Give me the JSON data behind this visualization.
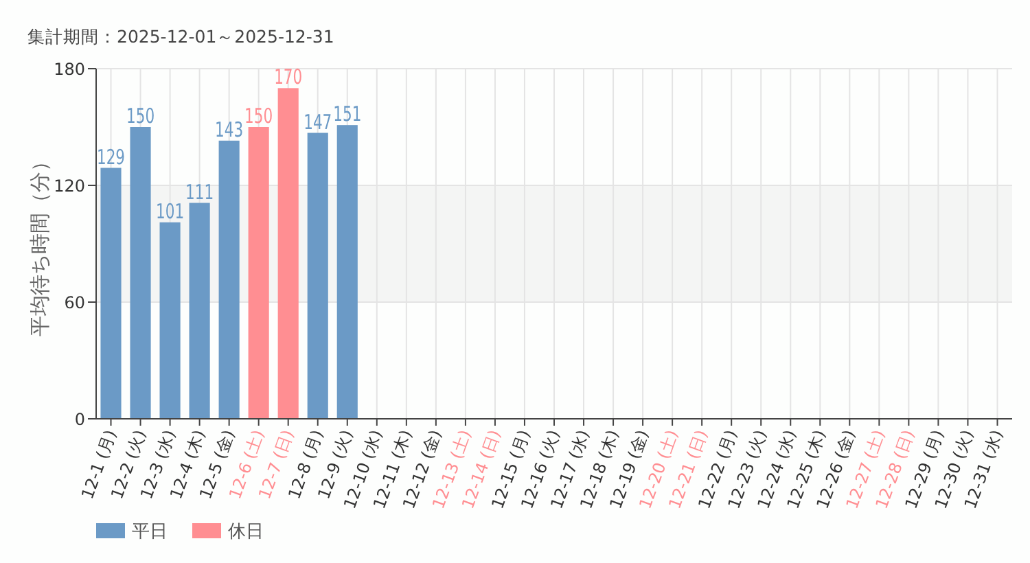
{
  "chart_data": {
    "type": "bar",
    "title": "集計期間：2025-12-01～2025-12-31",
    "ylabel": "平均待ち時間（分）",
    "categories": [
      "12-1 (月)",
      "12-2 (火)",
      "12-3 (水)",
      "12-4 (木)",
      "12-5 (金)",
      "12-6 (土)",
      "12-7 (日)",
      "12-8 (月)",
      "12-9 (火)",
      "12-10 (水)",
      "12-11 (木)",
      "12-12 (金)",
      "12-13 (土)",
      "12-14 (日)",
      "12-15 (月)",
      "12-16 (火)",
      "12-17 (水)",
      "12-18 (木)",
      "12-19 (金)",
      "12-20 (土)",
      "12-21 (日)",
      "12-22 (月)",
      "12-23 (火)",
      "12-24 (水)",
      "12-25 (木)",
      "12-26 (金)",
      "12-27 (土)",
      "12-28 (日)",
      "12-29 (月)",
      "12-30 (火)",
      "12-31 (水)"
    ],
    "series": [
      {
        "name": "平日",
        "color": "#6b9ac6",
        "values": [
          129,
          150,
          101,
          111,
          143,
          null,
          null,
          147,
          151,
          null,
          null,
          null,
          null,
          null,
          null,
          null,
          null,
          null,
          null,
          null,
          null,
          null,
          null,
          null,
          null,
          null,
          null,
          null,
          null,
          null,
          null
        ]
      },
      {
        "name": "休日",
        "color": "#ff8e92",
        "values": [
          null,
          null,
          null,
          null,
          null,
          150,
          170,
          null,
          null,
          null,
          null,
          null,
          null,
          null,
          null,
          null,
          null,
          null,
          null,
          null,
          null,
          null,
          null,
          null,
          null,
          null,
          null,
          null,
          null,
          null,
          null
        ]
      }
    ],
    "colors": [
      "#6b9ac6",
      "#6b9ac6",
      "#6b9ac6",
      "#6b9ac6",
      "#6b9ac6",
      "#ff8e92",
      "#ff8e92",
      "#6b9ac6",
      "#6b9ac6",
      "#6b9ac6",
      "#6b9ac6",
      "#6b9ac6",
      "#ff8e92",
      "#ff8e92",
      "#6b9ac6",
      "#6b9ac6",
      "#6b9ac6",
      "#6b9ac6",
      "#6b9ac6",
      "#ff8e92",
      "#ff8e92",
      "#6b9ac6",
      "#6b9ac6",
      "#6b9ac6",
      "#6b9ac6",
      "#6b9ac6",
      "#ff8e92",
      "#ff8e92",
      "#6b9ac6",
      "#6b9ac6",
      "#6b9ac6"
    ],
    "stacked": true,
    "ylim": [
      0,
      180
    ],
    "yticks": [
      0,
      60,
      120,
      180
    ],
    "grid": true,
    "legend": "bottom left",
    "data_labels": true,
    "bands": [
      {
        "axis": "y",
        "from": 60,
        "to": 120,
        "color": "#f4f5f4"
      }
    ]
  }
}
